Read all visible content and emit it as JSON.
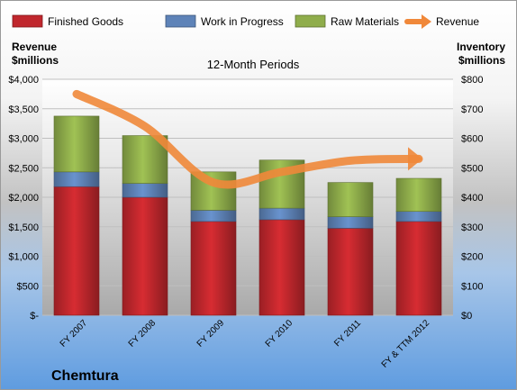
{
  "chart_data": {
    "type": "bar",
    "stacked": true,
    "title": "12-Month Periods",
    "company": "Chemtura",
    "y_left_label": [
      "Revenue",
      "$millions"
    ],
    "y_right_label": [
      "Inventory",
      "$millions"
    ],
    "categories": [
      "FY 2007",
      "FY 2008",
      "FY 2009",
      "FY 2010",
      "FY 2011",
      "FY & TTM 2012"
    ],
    "ylim_left": [
      0,
      4000
    ],
    "ylim_right": [
      0,
      800
    ],
    "left_ticks": [
      "$-",
      "$500",
      "$1,000",
      "$1,500",
      "$2,000",
      "$2,500",
      "$3,000",
      "$3,500",
      "$4,000"
    ],
    "right_ticks": [
      "$0",
      "$100",
      "$200",
      "$300",
      "$400",
      "$500",
      "$600",
      "$700",
      "$800"
    ],
    "legend_position": "top",
    "series": [
      {
        "name": "Finished Goods",
        "axis": "right",
        "color": "#c0272d",
        "values": [
          436,
          400,
          318,
          324,
          295,
          318
        ]
      },
      {
        "name": "Work in Progress",
        "axis": "right",
        "color": "#5e83b8",
        "values": [
          50,
          47,
          38,
          39,
          39,
          34
        ]
      },
      {
        "name": "Raw Materials",
        "axis": "right",
        "color": "#8fad4b",
        "values": [
          189,
          162,
          130,
          163,
          116,
          112
        ]
      }
    ],
    "line_series": {
      "name": "Revenue",
      "axis": "left",
      "color": "#f0883a",
      "values": [
        3750,
        3200,
        2250,
        2430,
        2620,
        2650
      ]
    }
  }
}
